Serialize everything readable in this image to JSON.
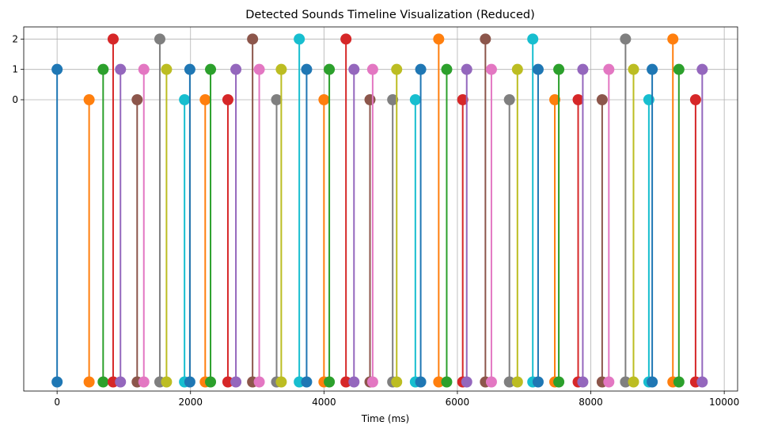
{
  "chart_data": {
    "type": "stem",
    "title": "Detected Sounds Timeline Visualization (Reduced)",
    "xlabel": "Time (ms)",
    "ylabel": "",
    "xlim": [
      -500,
      10200
    ],
    "ylim": [
      -9.6,
      2.4
    ],
    "baseline": -9.3,
    "grid": true,
    "legend": "none",
    "x_ticks": [
      0,
      2000,
      4000,
      6000,
      8000,
      10000
    ],
    "x_tick_labels": [
      "0",
      "2000",
      "4000",
      "6000",
      "8000",
      "10000"
    ],
    "y_ticks": [
      0,
      1,
      2
    ],
    "y_tick_labels": [
      "0",
      "1",
      "2"
    ],
    "colors": [
      "#1f77b4",
      "#ff7f0e",
      "#2ca02c",
      "#d62728",
      "#9467bd",
      "#8c564b",
      "#e377c2",
      "#7f7f7f",
      "#bcbd22",
      "#17becf"
    ],
    "points": [
      {
        "x": 0,
        "y": 1
      },
      {
        "x": 480,
        "y": 0
      },
      {
        "x": 690,
        "y": 1
      },
      {
        "x": 840,
        "y": 2
      },
      {
        "x": 950,
        "y": 1
      },
      {
        "x": 1200,
        "y": 0
      },
      {
        "x": 1300,
        "y": 1
      },
      {
        "x": 1540,
        "y": 2
      },
      {
        "x": 1640,
        "y": 1
      },
      {
        "x": 1910,
        "y": 0
      },
      {
        "x": 1990,
        "y": 1
      },
      {
        "x": 2220,
        "y": 0
      },
      {
        "x": 2300,
        "y": 1
      },
      {
        "x": 2560,
        "y": 0
      },
      {
        "x": 2680,
        "y": 1
      },
      {
        "x": 2930,
        "y": 2
      },
      {
        "x": 3030,
        "y": 1
      },
      {
        "x": 3290,
        "y": 0
      },
      {
        "x": 3360,
        "y": 1
      },
      {
        "x": 3630,
        "y": 2
      },
      {
        "x": 3740,
        "y": 1
      },
      {
        "x": 4000,
        "y": 0
      },
      {
        "x": 4080,
        "y": 1
      },
      {
        "x": 4330,
        "y": 2
      },
      {
        "x": 4450,
        "y": 1
      },
      {
        "x": 4690,
        "y": 0
      },
      {
        "x": 4730,
        "y": 1
      },
      {
        "x": 5030,
        "y": 0
      },
      {
        "x": 5090,
        "y": 1
      },
      {
        "x": 5370,
        "y": 0
      },
      {
        "x": 5450,
        "y": 1
      },
      {
        "x": 5720,
        "y": 2
      },
      {
        "x": 5840,
        "y": 1
      },
      {
        "x": 6080,
        "y": 0
      },
      {
        "x": 6140,
        "y": 1
      },
      {
        "x": 6420,
        "y": 2
      },
      {
        "x": 6510,
        "y": 1
      },
      {
        "x": 6780,
        "y": 0
      },
      {
        "x": 6900,
        "y": 1
      },
      {
        "x": 7130,
        "y": 2
      },
      {
        "x": 7210,
        "y": 1
      },
      {
        "x": 7460,
        "y": 0
      },
      {
        "x": 7520,
        "y": 1
      },
      {
        "x": 7810,
        "y": 0
      },
      {
        "x": 7880,
        "y": 1
      },
      {
        "x": 8170,
        "y": 0
      },
      {
        "x": 8270,
        "y": 1
      },
      {
        "x": 8520,
        "y": 2
      },
      {
        "x": 8640,
        "y": 1
      },
      {
        "x": 8870,
        "y": 0
      },
      {
        "x": 8920,
        "y": 1
      },
      {
        "x": 9230,
        "y": 2
      },
      {
        "x": 9320,
        "y": 1
      },
      {
        "x": 9570,
        "y": 0
      },
      {
        "x": 9670,
        "y": 1
      }
    ]
  }
}
